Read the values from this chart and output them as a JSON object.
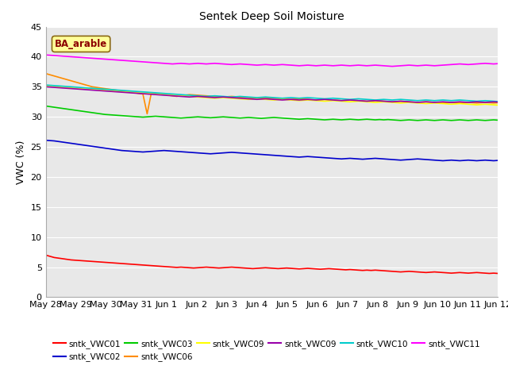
{
  "title": "Sentek Deep Soil Moisture",
  "ylabel": "VWC (%)",
  "annotation": "BA_arable",
  "ylim": [
    0,
    45
  ],
  "yticks": [
    0,
    5,
    10,
    15,
    20,
    25,
    30,
    35,
    40,
    45
  ],
  "xtick_labels": [
    "May 28",
    "May 29",
    "May 30",
    "May 31",
    "Jun 1",
    "Jun 2",
    "Jun 3",
    "Jun 4",
    "Jun 5",
    "Jun 6",
    "Jun 7",
    "Jun 8",
    "Jun 9",
    "Jun 10",
    "Jun 11",
    "Jun 12"
  ],
  "xtick_positions": [
    0,
    1,
    2,
    3,
    4,
    5,
    6,
    7,
    8,
    9,
    10,
    11,
    12,
    13,
    14,
    15
  ],
  "series": {
    "sntk_VWC01": {
      "color": "#FF0000",
      "label": "sntk_VWC01",
      "values": [
        7.0,
        6.8,
        6.6,
        6.5,
        6.4,
        6.3,
        6.2,
        6.15,
        6.1,
        6.05,
        6.0,
        5.95,
        5.9,
        5.85,
        5.8,
        5.75,
        5.7,
        5.65,
        5.6,
        5.55,
        5.5,
        5.45,
        5.4,
        5.35,
        5.3,
        5.25,
        5.2,
        5.15,
        5.1,
        5.05,
        5.0,
        4.95,
        5.0,
        4.95,
        4.9,
        4.85,
        4.9,
        4.95,
        5.0,
        4.95,
        4.9,
        4.85,
        4.9,
        4.95,
        5.0,
        4.95,
        4.9,
        4.85,
        4.8,
        4.75,
        4.8,
        4.85,
        4.9,
        4.85,
        4.8,
        4.75,
        4.8,
        4.85,
        4.8,
        4.75,
        4.7,
        4.75,
        4.8,
        4.75,
        4.7,
        4.65,
        4.7,
        4.75,
        4.7,
        4.65,
        4.6,
        4.55,
        4.6,
        4.55,
        4.5,
        4.45,
        4.5,
        4.45,
        4.5,
        4.45,
        4.4,
        4.35,
        4.3,
        4.25,
        4.2,
        4.25,
        4.3,
        4.25,
        4.2,
        4.15,
        4.1,
        4.15,
        4.2,
        4.15,
        4.1,
        4.05,
        4.0,
        4.05,
        4.1,
        4.05,
        4.0,
        4.05,
        4.1,
        4.05,
        4.0,
        3.95,
        4.0,
        3.95
      ]
    },
    "sntk_VWC02": {
      "color": "#0000CC",
      "label": "sntk_VWC02",
      "values": [
        26.1,
        26.05,
        26.0,
        25.9,
        25.8,
        25.7,
        25.6,
        25.5,
        25.4,
        25.3,
        25.2,
        25.1,
        25.0,
        24.9,
        24.8,
        24.7,
        24.6,
        24.5,
        24.4,
        24.35,
        24.3,
        24.25,
        24.2,
        24.15,
        24.2,
        24.25,
        24.3,
        24.35,
        24.4,
        24.35,
        24.3,
        24.25,
        24.2,
        24.15,
        24.1,
        24.05,
        24.0,
        23.95,
        23.9,
        23.85,
        23.9,
        23.95,
        24.0,
        24.05,
        24.1,
        24.05,
        24.0,
        23.95,
        23.9,
        23.85,
        23.8,
        23.75,
        23.7,
        23.65,
        23.6,
        23.55,
        23.5,
        23.45,
        23.4,
        23.35,
        23.3,
        23.35,
        23.4,
        23.35,
        23.3,
        23.25,
        23.2,
        23.15,
        23.1,
        23.05,
        23.0,
        23.05,
        23.1,
        23.05,
        23.0,
        22.95,
        23.0,
        23.05,
        23.1,
        23.05,
        23.0,
        22.95,
        22.9,
        22.85,
        22.8,
        22.85,
        22.9,
        22.95,
        23.0,
        22.95,
        22.9,
        22.85,
        22.8,
        22.75,
        22.7,
        22.75,
        22.8,
        22.75,
        22.7,
        22.75,
        22.8,
        22.75,
        22.7,
        22.75,
        22.8,
        22.75,
        22.7,
        22.75
      ]
    },
    "sntk_VWC03": {
      "color": "#00CC00",
      "label": "sntk_VWC03",
      "values": [
        31.8,
        31.7,
        31.6,
        31.5,
        31.4,
        31.3,
        31.2,
        31.1,
        31.0,
        30.9,
        30.8,
        30.7,
        30.6,
        30.5,
        30.4,
        30.35,
        30.3,
        30.25,
        30.2,
        30.15,
        30.1,
        30.05,
        30.0,
        29.95,
        30.0,
        30.05,
        30.1,
        30.05,
        30.0,
        29.95,
        29.9,
        29.85,
        29.8,
        29.85,
        29.9,
        29.95,
        30.0,
        29.95,
        29.9,
        29.85,
        29.9,
        29.95,
        30.0,
        29.95,
        29.9,
        29.85,
        29.8,
        29.85,
        29.9,
        29.85,
        29.8,
        29.75,
        29.8,
        29.85,
        29.9,
        29.85,
        29.8,
        29.75,
        29.7,
        29.65,
        29.6,
        29.65,
        29.7,
        29.65,
        29.6,
        29.55,
        29.5,
        29.55,
        29.6,
        29.55,
        29.5,
        29.55,
        29.6,
        29.55,
        29.5,
        29.55,
        29.6,
        29.55,
        29.5,
        29.55,
        29.5,
        29.55,
        29.5,
        29.45,
        29.4,
        29.45,
        29.5,
        29.45,
        29.4,
        29.45,
        29.5,
        29.45,
        29.4,
        29.45,
        29.5,
        29.45,
        29.4,
        29.45,
        29.5,
        29.45,
        29.4,
        29.45,
        29.5,
        29.45,
        29.4,
        29.45,
        29.5,
        29.45
      ]
    },
    "sntk_VWC06": {
      "color": "#FF8C00",
      "label": "sntk_VWC06",
      "values": [
        37.2,
        37.0,
        36.8,
        36.6,
        36.4,
        36.2,
        36.0,
        35.8,
        35.6,
        35.4,
        35.2,
        35.0,
        34.9,
        34.8,
        34.7,
        34.6,
        34.5,
        34.4,
        34.3,
        34.2,
        34.1,
        34.0,
        33.9,
        33.8,
        30.5,
        34.0,
        33.9,
        33.8,
        33.7,
        33.6,
        33.5,
        33.4,
        33.5,
        33.6,
        33.7,
        33.65,
        33.6,
        33.55,
        33.5,
        33.45,
        33.4,
        33.35,
        33.3,
        33.35,
        33.4,
        33.35,
        33.3,
        33.25,
        33.2,
        33.15,
        33.1,
        33.15,
        33.2,
        33.15,
        33.1,
        33.05,
        33.0,
        32.95,
        32.9,
        32.95,
        33.0,
        32.95,
        32.9,
        32.85,
        32.8,
        32.85,
        32.9,
        32.85,
        32.8,
        32.75,
        32.7,
        32.75,
        32.8,
        32.75,
        32.7,
        32.65,
        32.6,
        32.65,
        32.7,
        32.65,
        32.6,
        32.55,
        32.5,
        32.55,
        32.6,
        32.55,
        32.5,
        32.45,
        32.4,
        32.45,
        32.5,
        32.45,
        32.4,
        32.35,
        32.3,
        32.35,
        32.4,
        32.35,
        32.3,
        32.35,
        32.4,
        32.35,
        32.3,
        32.35,
        32.4,
        32.35,
        32.3,
        32.35
      ]
    },
    "sntk_VWC09_yellow": {
      "color": "#FFFF00",
      "label": "sntk_VWC09",
      "values": [
        35.1,
        35.05,
        35.0,
        34.95,
        34.9,
        34.85,
        34.8,
        34.75,
        34.7,
        34.65,
        34.6,
        34.55,
        34.5,
        34.45,
        34.4,
        34.35,
        34.3,
        34.25,
        34.2,
        34.15,
        34.1,
        34.05,
        34.0,
        33.95,
        33.9,
        33.85,
        33.8,
        33.75,
        33.7,
        33.65,
        33.6,
        33.55,
        33.5,
        33.45,
        33.4,
        33.35,
        33.3,
        33.25,
        33.2,
        33.15,
        33.1,
        33.15,
        33.2,
        33.15,
        33.1,
        33.05,
        33.0,
        32.95,
        32.9,
        32.95,
        33.0,
        32.95,
        32.9,
        32.85,
        32.8,
        32.85,
        32.9,
        32.85,
        32.8,
        32.75,
        32.7,
        32.75,
        32.8,
        32.75,
        32.7,
        32.65,
        32.6,
        32.65,
        32.7,
        32.65,
        32.6,
        32.55,
        32.5,
        32.55,
        32.6,
        32.55,
        32.5,
        32.45,
        32.4,
        32.45,
        32.5,
        32.45,
        32.4,
        32.35,
        32.3,
        32.35,
        32.4,
        32.35,
        32.3,
        32.25,
        32.2,
        32.25,
        32.3,
        32.25,
        32.2,
        32.15,
        32.1,
        32.15,
        32.2,
        32.15,
        32.1,
        32.05,
        32.0,
        32.05,
        32.1,
        32.05,
        32.0,
        31.95
      ]
    },
    "sntk_VWC09_purple": {
      "color": "#9900AA",
      "label": "sntk_VWC09",
      "values": [
        35.0,
        34.95,
        34.9,
        34.85,
        34.8,
        34.75,
        34.7,
        34.65,
        34.6,
        34.55,
        34.5,
        34.45,
        34.4,
        34.35,
        34.3,
        34.25,
        34.2,
        34.15,
        34.1,
        34.05,
        34.0,
        33.95,
        33.9,
        33.85,
        33.8,
        33.75,
        33.7,
        33.65,
        33.6,
        33.55,
        33.5,
        33.45,
        33.4,
        33.35,
        33.3,
        33.35,
        33.4,
        33.35,
        33.3,
        33.25,
        33.2,
        33.25,
        33.3,
        33.25,
        33.2,
        33.15,
        33.1,
        33.05,
        33.0,
        32.95,
        32.9,
        32.95,
        33.0,
        32.95,
        32.9,
        32.85,
        32.8,
        32.85,
        32.9,
        32.85,
        32.8,
        32.85,
        32.9,
        32.85,
        32.8,
        32.85,
        32.9,
        32.85,
        32.8,
        32.75,
        32.7,
        32.75,
        32.8,
        32.75,
        32.7,
        32.65,
        32.6,
        32.65,
        32.7,
        32.65,
        32.6,
        32.55,
        32.5,
        32.55,
        32.6,
        32.55,
        32.5,
        32.45,
        32.4,
        32.45,
        32.5,
        32.45,
        32.4,
        32.45,
        32.5,
        32.45,
        32.4,
        32.45,
        32.5,
        32.45,
        32.4,
        32.45,
        32.5,
        32.45,
        32.4,
        32.45,
        32.5,
        32.45
      ]
    },
    "sntk_VWC10": {
      "color": "#00CCCC",
      "label": "sntk_VWC10",
      "values": [
        35.3,
        35.25,
        35.2,
        35.15,
        35.1,
        35.05,
        35.0,
        34.95,
        34.9,
        34.85,
        34.8,
        34.75,
        34.7,
        34.65,
        34.6,
        34.55,
        34.5,
        34.45,
        34.4,
        34.35,
        34.3,
        34.25,
        34.2,
        34.15,
        34.1,
        34.05,
        34.0,
        33.95,
        33.9,
        33.85,
        33.8,
        33.75,
        33.7,
        33.65,
        33.6,
        33.55,
        33.5,
        33.45,
        33.4,
        33.45,
        33.5,
        33.45,
        33.4,
        33.35,
        33.3,
        33.35,
        33.4,
        33.35,
        33.3,
        33.25,
        33.2,
        33.25,
        33.3,
        33.25,
        33.2,
        33.15,
        33.1,
        33.15,
        33.2,
        33.15,
        33.1,
        33.15,
        33.2,
        33.15,
        33.1,
        33.05,
        33.0,
        33.05,
        33.1,
        33.05,
        33.0,
        32.95,
        32.9,
        32.95,
        33.0,
        32.95,
        32.9,
        32.85,
        32.8,
        32.85,
        32.9,
        32.85,
        32.8,
        32.85,
        32.9,
        32.85,
        32.8,
        32.75,
        32.7,
        32.75,
        32.8,
        32.75,
        32.7,
        32.75,
        32.8,
        32.75,
        32.7,
        32.75,
        32.8,
        32.75,
        32.7,
        32.65,
        32.6,
        32.65,
        32.7,
        32.65,
        32.6,
        32.55
      ]
    },
    "sntk_VWC11": {
      "color": "#FF00FF",
      "label": "sntk_VWC11",
      "values": [
        40.3,
        40.25,
        40.2,
        40.15,
        40.1,
        40.05,
        40.0,
        39.95,
        39.9,
        39.85,
        39.8,
        39.75,
        39.7,
        39.65,
        39.6,
        39.55,
        39.5,
        39.45,
        39.4,
        39.35,
        39.3,
        39.25,
        39.2,
        39.15,
        39.1,
        39.05,
        39.0,
        38.95,
        38.9,
        38.85,
        38.8,
        38.85,
        38.9,
        38.85,
        38.8,
        38.85,
        38.9,
        38.85,
        38.8,
        38.85,
        38.9,
        38.85,
        38.8,
        38.75,
        38.7,
        38.75,
        38.8,
        38.75,
        38.7,
        38.65,
        38.6,
        38.65,
        38.7,
        38.65,
        38.6,
        38.65,
        38.7,
        38.65,
        38.6,
        38.55,
        38.5,
        38.55,
        38.6,
        38.55,
        38.5,
        38.55,
        38.6,
        38.55,
        38.5,
        38.55,
        38.6,
        38.55,
        38.5,
        38.55,
        38.6,
        38.55,
        38.5,
        38.55,
        38.6,
        38.55,
        38.5,
        38.45,
        38.4,
        38.45,
        38.5,
        38.55,
        38.6,
        38.55,
        38.5,
        38.55,
        38.6,
        38.55,
        38.5,
        38.55,
        38.6,
        38.65,
        38.7,
        38.75,
        38.8,
        38.75,
        38.7,
        38.75,
        38.8,
        38.85,
        38.9,
        38.85,
        38.8,
        38.85
      ]
    }
  },
  "legend_entries": [
    {
      "label": "sntk_VWC01",
      "color": "#FF0000"
    },
    {
      "label": "sntk_VWC02",
      "color": "#0000CC"
    },
    {
      "label": "sntk_VWC03",
      "color": "#00CC00"
    },
    {
      "label": "sntk_VWC06",
      "color": "#FF8C00"
    },
    {
      "label": "sntk_VWC09",
      "color": "#FFFF00"
    },
    {
      "label": "sntk_VWC09",
      "color": "#9900AA"
    },
    {
      "label": "sntk_VWC10",
      "color": "#00CCCC"
    },
    {
      "label": "sntk_VWC11",
      "color": "#FF00FF"
    }
  ],
  "bg_color": "#FFFFFF",
  "plot_bg_color": "#E8E8E8",
  "grid_color": "#FFFFFF",
  "title_fontsize": 10,
  "axis_fontsize": 8,
  "legend_fontsize": 7.5
}
